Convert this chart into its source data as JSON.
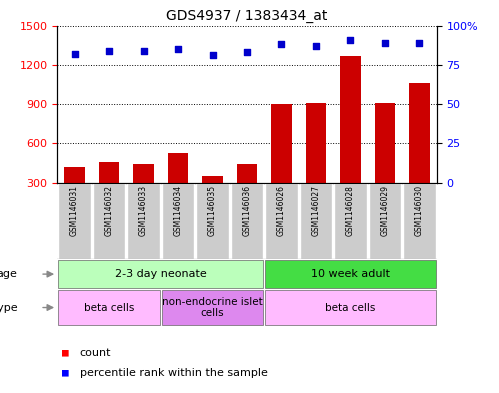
{
  "title": "GDS4937 / 1383434_at",
  "samples": [
    "GSM1146031",
    "GSM1146032",
    "GSM1146033",
    "GSM1146034",
    "GSM1146035",
    "GSM1146036",
    "GSM1146026",
    "GSM1146027",
    "GSM1146028",
    "GSM1146029",
    "GSM1146030"
  ],
  "counts": [
    420,
    455,
    445,
    525,
    350,
    445,
    900,
    910,
    1270,
    910,
    1060
  ],
  "percentiles": [
    82,
    84,
    84,
    85,
    81,
    83,
    88,
    87,
    91,
    89,
    89
  ],
  "ylim_left": [
    300,
    1500
  ],
  "ylim_right": [
    0,
    100
  ],
  "yticks_left": [
    300,
    600,
    900,
    1200,
    1500
  ],
  "yticks_right": [
    0,
    25,
    50,
    75,
    100
  ],
  "bar_color": "#cc0000",
  "dot_color": "#0000cc",
  "age_groups": [
    {
      "label": "2-3 day neonate",
      "start": 0,
      "end": 6,
      "color": "#bbffbb"
    },
    {
      "label": "10 week adult",
      "start": 6,
      "end": 11,
      "color": "#44dd44"
    }
  ],
  "cell_type_groups": [
    {
      "label": "beta cells",
      "start": 0,
      "end": 3,
      "color": "#ffbbff"
    },
    {
      "label": "non-endocrine islet\ncells",
      "start": 3,
      "end": 6,
      "color": "#dd88ee"
    },
    {
      "label": "beta cells",
      "start": 6,
      "end": 11,
      "color": "#ffbbff"
    }
  ]
}
